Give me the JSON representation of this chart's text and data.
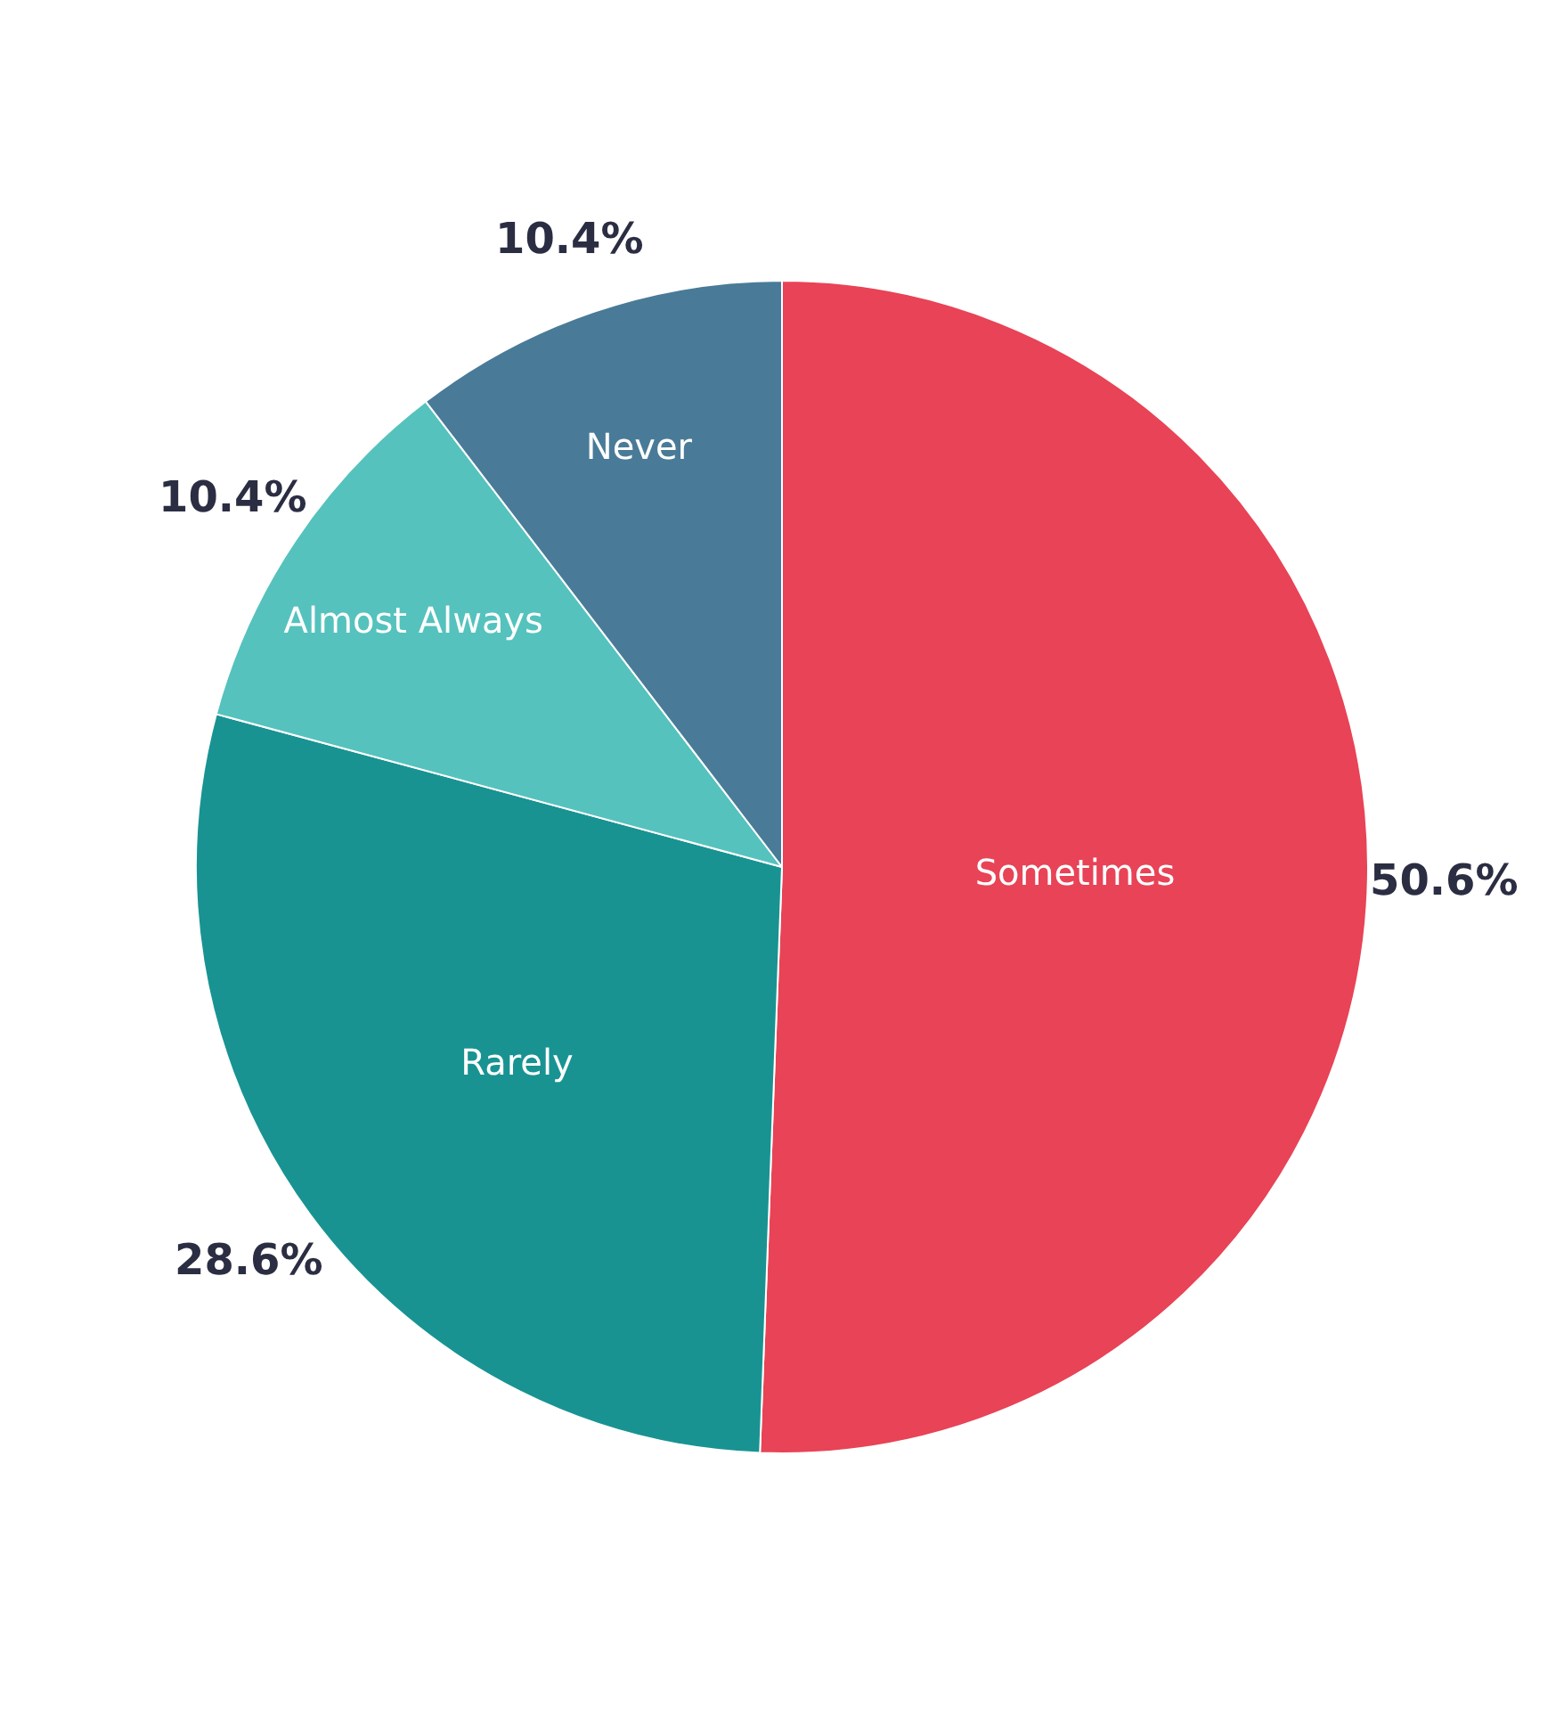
{
  "chart_data": {
    "type": "pie",
    "categories": [
      "Sometimes",
      "Rarely",
      "Almost Always",
      "Never"
    ],
    "values": [
      50.6,
      28.6,
      10.4,
      10.4
    ],
    "colors": [
      "#e84356",
      "#189392",
      "#55c2bd",
      "#497b98"
    ],
    "value_labels": [
      "50.6%",
      "28.6%",
      "10.4%",
      "10.4%"
    ],
    "legend": false
  }
}
